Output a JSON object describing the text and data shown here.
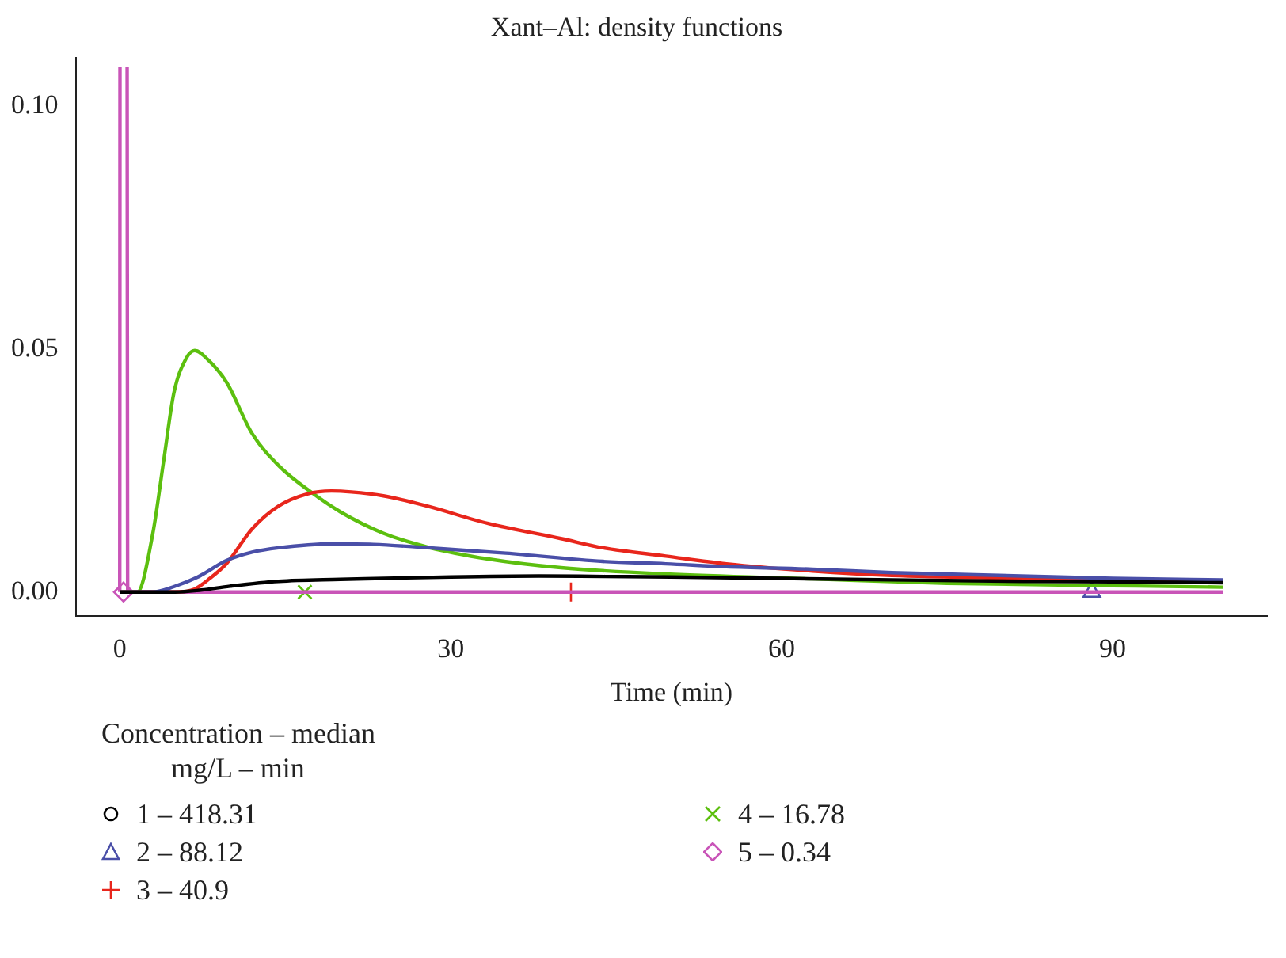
{
  "chart_data": {
    "type": "line",
    "title": "Xant–Al: density functions",
    "xlabel": "Time (min)",
    "legend_title": "Concentration – median\nmg/L – min",
    "legend": "bottom left",
    "grid": false,
    "xlim": [
      -4,
      104
    ],
    "xticks": [
      0,
      30,
      60,
      90
    ],
    "ylim": [
      -0.005,
      0.11
    ],
    "yticks": [
      {
        "value": 0,
        "label": "0.00"
      },
      {
        "value": 0.05,
        "label": "0.05"
      },
      {
        "value": 0.1,
        "label": "0.10"
      }
    ],
    "series": [
      {
        "color": "#000000",
        "x": [
          0,
          5,
          7,
          10,
          14.4,
          20,
          24,
          30,
          38,
          44,
          50,
          60,
          70,
          82,
          90,
          100
        ],
        "values": [
          0,
          0,
          0.0003,
          0.0012,
          0.0022,
          0.0026,
          0.0028,
          0.0031,
          0.0033,
          0.0032,
          0.0031,
          0.0028,
          0.0025,
          0.0022,
          0.0021,
          0.0019
        ]
      },
      {
        "color": "#4a4fa8",
        "x": [
          0,
          3,
          4.9,
          7,
          9.7,
          12,
          14.4,
          19.2,
          23,
          28.6,
          35,
          43.8,
          49.5,
          55,
          62.8,
          70,
          81.7,
          90,
          100
        ],
        "values": [
          0,
          0,
          0.0011,
          0.003,
          0.0065,
          0.0082,
          0.0091,
          0.0099,
          0.0098,
          0.009,
          0.008,
          0.0063,
          0.0058,
          0.0052,
          0.0047,
          0.004,
          0.0033,
          0.0028,
          0.0025
        ]
      },
      {
        "color": "#e8261c",
        "x": [
          0,
          5,
          6.8,
          8,
          9.7,
          12,
          14.4,
          17,
          19.2,
          21,
          23.9,
          28,
          33.4,
          40,
          43.8,
          49.5,
          55,
          62.8,
          70,
          81.7,
          90,
          100
        ],
        "values": [
          0,
          0,
          0.0006,
          0.0025,
          0.0059,
          0.013,
          0.0177,
          0.0202,
          0.0208,
          0.0206,
          0.0198,
          0.0176,
          0.0141,
          0.011,
          0.0091,
          0.0074,
          0.0058,
          0.0043,
          0.0034,
          0.0028,
          0.0024,
          0.002
        ]
      },
      {
        "color": "#5cbf0f",
        "x": [
          0,
          1.6,
          3,
          4,
          4.9,
          6,
          6.8,
          8,
          9.7,
          12,
          14.5,
          17.2,
          20,
          23.9,
          28,
          33.4,
          40,
          49.5,
          62.8,
          75,
          90,
          100
        ],
        "values": [
          0,
          0,
          0.0121,
          0.0273,
          0.0409,
          0.048,
          0.0497,
          0.0478,
          0.0431,
          0.0326,
          0.0258,
          0.0208,
          0.0165,
          0.0121,
          0.0092,
          0.0068,
          0.005,
          0.0037,
          0.0027,
          0.0018,
          0.0013,
          0.001
        ]
      },
      {
        "color": "#c954b8",
        "x": [
          0,
          0.02,
          0.1,
          0.67,
          0.72,
          100
        ],
        "values": [
          0,
          0.108,
          null,
          0.108,
          0,
          0
        ]
      },
      {
        "type": "scatter",
        "name": "1 – 418.31",
        "color": "#000000",
        "marker": "circle"
      },
      {
        "type": "scatter",
        "name": "2 – 88.12",
        "color": "#4a4fa8",
        "marker": "triangle",
        "x": [
          88.12
        ],
        "values": [
          0
        ]
      },
      {
        "type": "scatter",
        "name": "3 – 40.9",
        "color": "#e8261c",
        "marker": "cross",
        "x": [
          40.9
        ],
        "values": [
          0
        ]
      },
      {
        "type": "scatter",
        "name": "4 – 16.78",
        "color": "#5cbf0f",
        "marker": "x",
        "x": [
          16.78
        ],
        "values": [
          0
        ]
      },
      {
        "type": "scatter",
        "name": "5 – 0.34",
        "color": "#c954b8",
        "marker": "diamond",
        "x": [
          0.34
        ],
        "values": [
          0
        ]
      }
    ]
  }
}
